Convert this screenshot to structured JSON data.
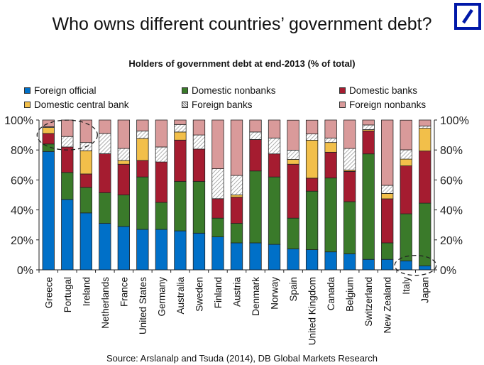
{
  "title": "Who owns different countries’ government debt?",
  "source": "Source: Arslanalp and Tsuda (2014), DB Global Markets Research",
  "logo": {
    "icon": "deutsche-bank-logo",
    "color": "#0018A8"
  },
  "chart_data": {
    "type": "bar",
    "stacked": true,
    "title": "Holders of government debt at end-2013 (% of total)",
    "xlabel": "",
    "ylabel": "",
    "ylim": [
      0,
      100
    ],
    "yticks": [
      "0%",
      "20%",
      "40%",
      "60%",
      "80%",
      "100%"
    ],
    "legend_position": "top",
    "categories": [
      "Greece",
      "Portugal",
      "Ireland",
      "Netherlands",
      "France",
      "United States",
      "Germany",
      "Australia",
      "Sweden",
      "Finland",
      "Austria",
      "Denmark",
      "Norway",
      "Spain",
      "United Kingdom",
      "Canada",
      "Belgium",
      "Switzerland",
      "New Zealand",
      "Italy",
      "Japan"
    ],
    "series": [
      {
        "name": "Foreign official",
        "color": "#0070C8",
        "pattern": "solid",
        "values": [
          79,
          47,
          38,
          31,
          29,
          27,
          27,
          26,
          24.5,
          22,
          18,
          18,
          17,
          14,
          13.5,
          12,
          10.7,
          7,
          7,
          6,
          2.7
        ]
      },
      {
        "name": "Domestic nonbanks",
        "color": "#3A7A2A",
        "pattern": "solid",
        "values": [
          5,
          18,
          17,
          20.5,
          21,
          35,
          18,
          33,
          34.5,
          12.5,
          13,
          48,
          45,
          20.5,
          39,
          49.3,
          34.8,
          70.4,
          11,
          31.4,
          41.8
        ]
      },
      {
        "name": "Domestic banks",
        "color": "#A51C30",
        "pattern": "solid",
        "values": [
          7,
          17,
          9,
          26,
          20.5,
          11,
          27,
          27.6,
          21.6,
          13,
          17.5,
          21,
          15.4,
          36,
          8.7,
          17.2,
          20.2,
          15.3,
          29.4,
          32,
          34.8
        ]
      },
      {
        "name": "Domestic central bank",
        "color": "#F2BF4A",
        "pattern": "solid",
        "values": [
          4,
          0,
          15.5,
          0,
          2.5,
          14.7,
          0,
          5.4,
          0,
          0,
          1.5,
          0,
          0,
          3.2,
          25.3,
          6.5,
          0.9,
          0.9,
          3.6,
          4.5,
          15.2
        ]
      },
      {
        "name": "Foreign banks",
        "color": "#FFFFFF",
        "pattern": "hatch",
        "values": [
          0.5,
          7,
          5.5,
          13.5,
          8,
          5,
          10,
          5,
          9.4,
          20,
          13,
          5,
          10.6,
          6.2,
          4.2,
          3,
          14.4,
          3.1,
          5.4,
          6.2,
          1.5
        ]
      },
      {
        "name": "Foreign nonbanks",
        "color": "#D99A9A",
        "pattern": "solid",
        "values": [
          4.5,
          11,
          15,
          9,
          19,
          7.3,
          18,
          3,
          10,
          32.5,
          37,
          8,
          12,
          20,
          9.2,
          12,
          19,
          3.3,
          43.6,
          19.8,
          4
        ]
      }
    ],
    "annotations": [
      {
        "type": "dashed-circle",
        "around": [
          "Greece",
          "Portugal",
          "Ireland"
        ],
        "where": "top"
      },
      {
        "type": "dashed-circle",
        "around": [
          "Italy",
          "Japan"
        ],
        "where": "bottom"
      }
    ]
  }
}
